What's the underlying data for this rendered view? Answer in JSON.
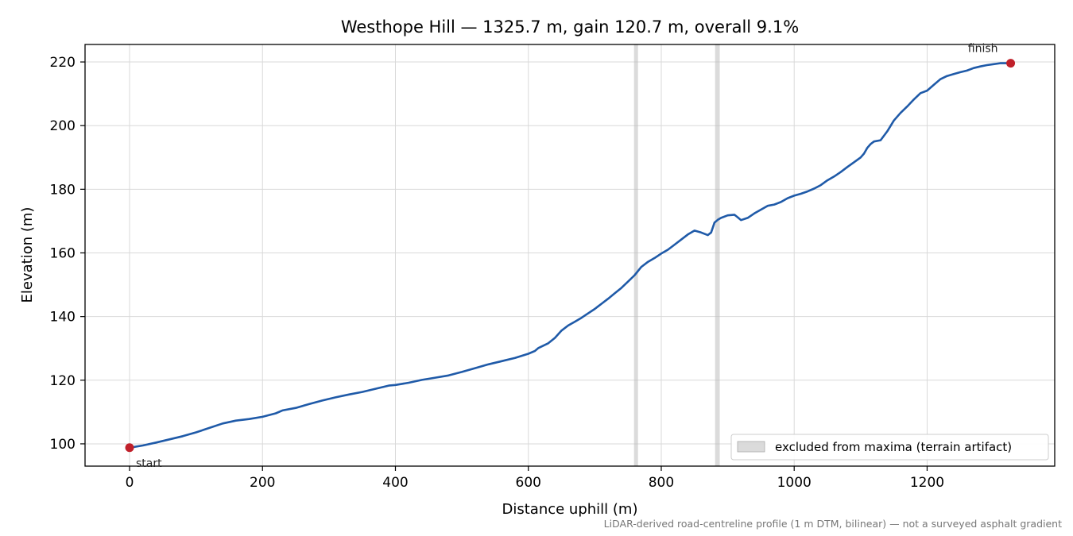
{
  "chart_data": {
    "type": "line",
    "title": "Westhope Hill — 1325.7 m, gain 120.7 m, overall 9.1%",
    "xlabel": "Distance uphill (m)",
    "ylabel": "Elevation (m)",
    "xlim": [
      -67,
      1392
    ],
    "ylim": [
      93,
      225.5
    ],
    "x_ticks": [
      0,
      200,
      400,
      600,
      800,
      1000,
      1200
    ],
    "y_ticks": [
      100,
      120,
      140,
      160,
      180,
      200,
      220
    ],
    "grid": true,
    "legend_position": "bottom-right",
    "line_color": "#1f5aa8",
    "marker_color": "#c0202a",
    "excluded_color": "#bdbdbd",
    "series": [
      {
        "name": "",
        "x": [
          0,
          20,
          40,
          60,
          80,
          100,
          120,
          140,
          160,
          180,
          200,
          220,
          230,
          250,
          270,
          290,
          310,
          330,
          350,
          370,
          390,
          400,
          420,
          440,
          460,
          480,
          500,
          520,
          540,
          560,
          580,
          600,
          610,
          615,
          630,
          640,
          650,
          660,
          670,
          680,
          690,
          700,
          705,
          710,
          720,
          730,
          740,
          750,
          760,
          770,
          780,
          790,
          800,
          810,
          820,
          830,
          840,
          850,
          860,
          870,
          875,
          880,
          885,
          890,
          900,
          910,
          915,
          920,
          930,
          940,
          950,
          960,
          970,
          980,
          990,
          1000,
          1010,
          1020,
          1030,
          1040,
          1050,
          1060,
          1070,
          1080,
          1090,
          1100,
          1105,
          1110,
          1115,
          1120,
          1130,
          1140,
          1150,
          1160,
          1170,
          1180,
          1190,
          1200,
          1210,
          1220,
          1230,
          1240,
          1250,
          1260,
          1270,
          1280,
          1290,
          1300,
          1310,
          1325.7
        ],
        "y": [
          98.8,
          99.5,
          100.4,
          101.4,
          102.4,
          103.6,
          105.0,
          106.4,
          107.3,
          107.8,
          108.5,
          109.6,
          110.5,
          111.3,
          112.5,
          113.6,
          114.6,
          115.5,
          116.3,
          117.3,
          118.3,
          118.5,
          119.2,
          120.1,
          120.8,
          121.5,
          122.6,
          123.8,
          125.0,
          126.0,
          127.0,
          128.3,
          129.2,
          130.1,
          131.6,
          133.3,
          135.6,
          137.2,
          138.4,
          139.6,
          141.0,
          142.4,
          143.2,
          144.0,
          145.6,
          147.3,
          149.0,
          151.0,
          153.0,
          155.6,
          157.2,
          158.4,
          159.8,
          161.0,
          162.6,
          164.2,
          165.8,
          167.0,
          166.4,
          165.6,
          166.4,
          169.5,
          170.4,
          171.0,
          171.8,
          172.0,
          171.2,
          170.3,
          171.0,
          172.4,
          173.6,
          174.8,
          175.2,
          176.0,
          177.2,
          178.0,
          178.6,
          179.3,
          180.2,
          181.3,
          182.8,
          184.0,
          185.4,
          187.0,
          188.5,
          190.0,
          191.2,
          193.0,
          194.2,
          195.0,
          195.4,
          198.2,
          201.6,
          204.0,
          206.0,
          208.2,
          210.2,
          211.0,
          212.8,
          214.6,
          215.6,
          216.2,
          216.8,
          217.3,
          218.1,
          218.6,
          219.0,
          219.3,
          219.6,
          219.6
        ]
      }
    ],
    "points": {
      "start": {
        "label": "start",
        "x": 0,
        "y": 98.8
      },
      "finish": {
        "label": "finish",
        "x": 1325.7,
        "y": 219.6
      }
    },
    "excluded_bands": [
      {
        "x0": 759,
        "x1": 765
      },
      {
        "x0": 881,
        "x1": 888
      }
    ],
    "legend": [
      {
        "label": "excluded from maxima (terrain artifact)"
      }
    ],
    "footnote": "LiDAR-derived road-centreline profile (1 m DTM, bilinear) — not a surveyed asphalt gradient"
  }
}
